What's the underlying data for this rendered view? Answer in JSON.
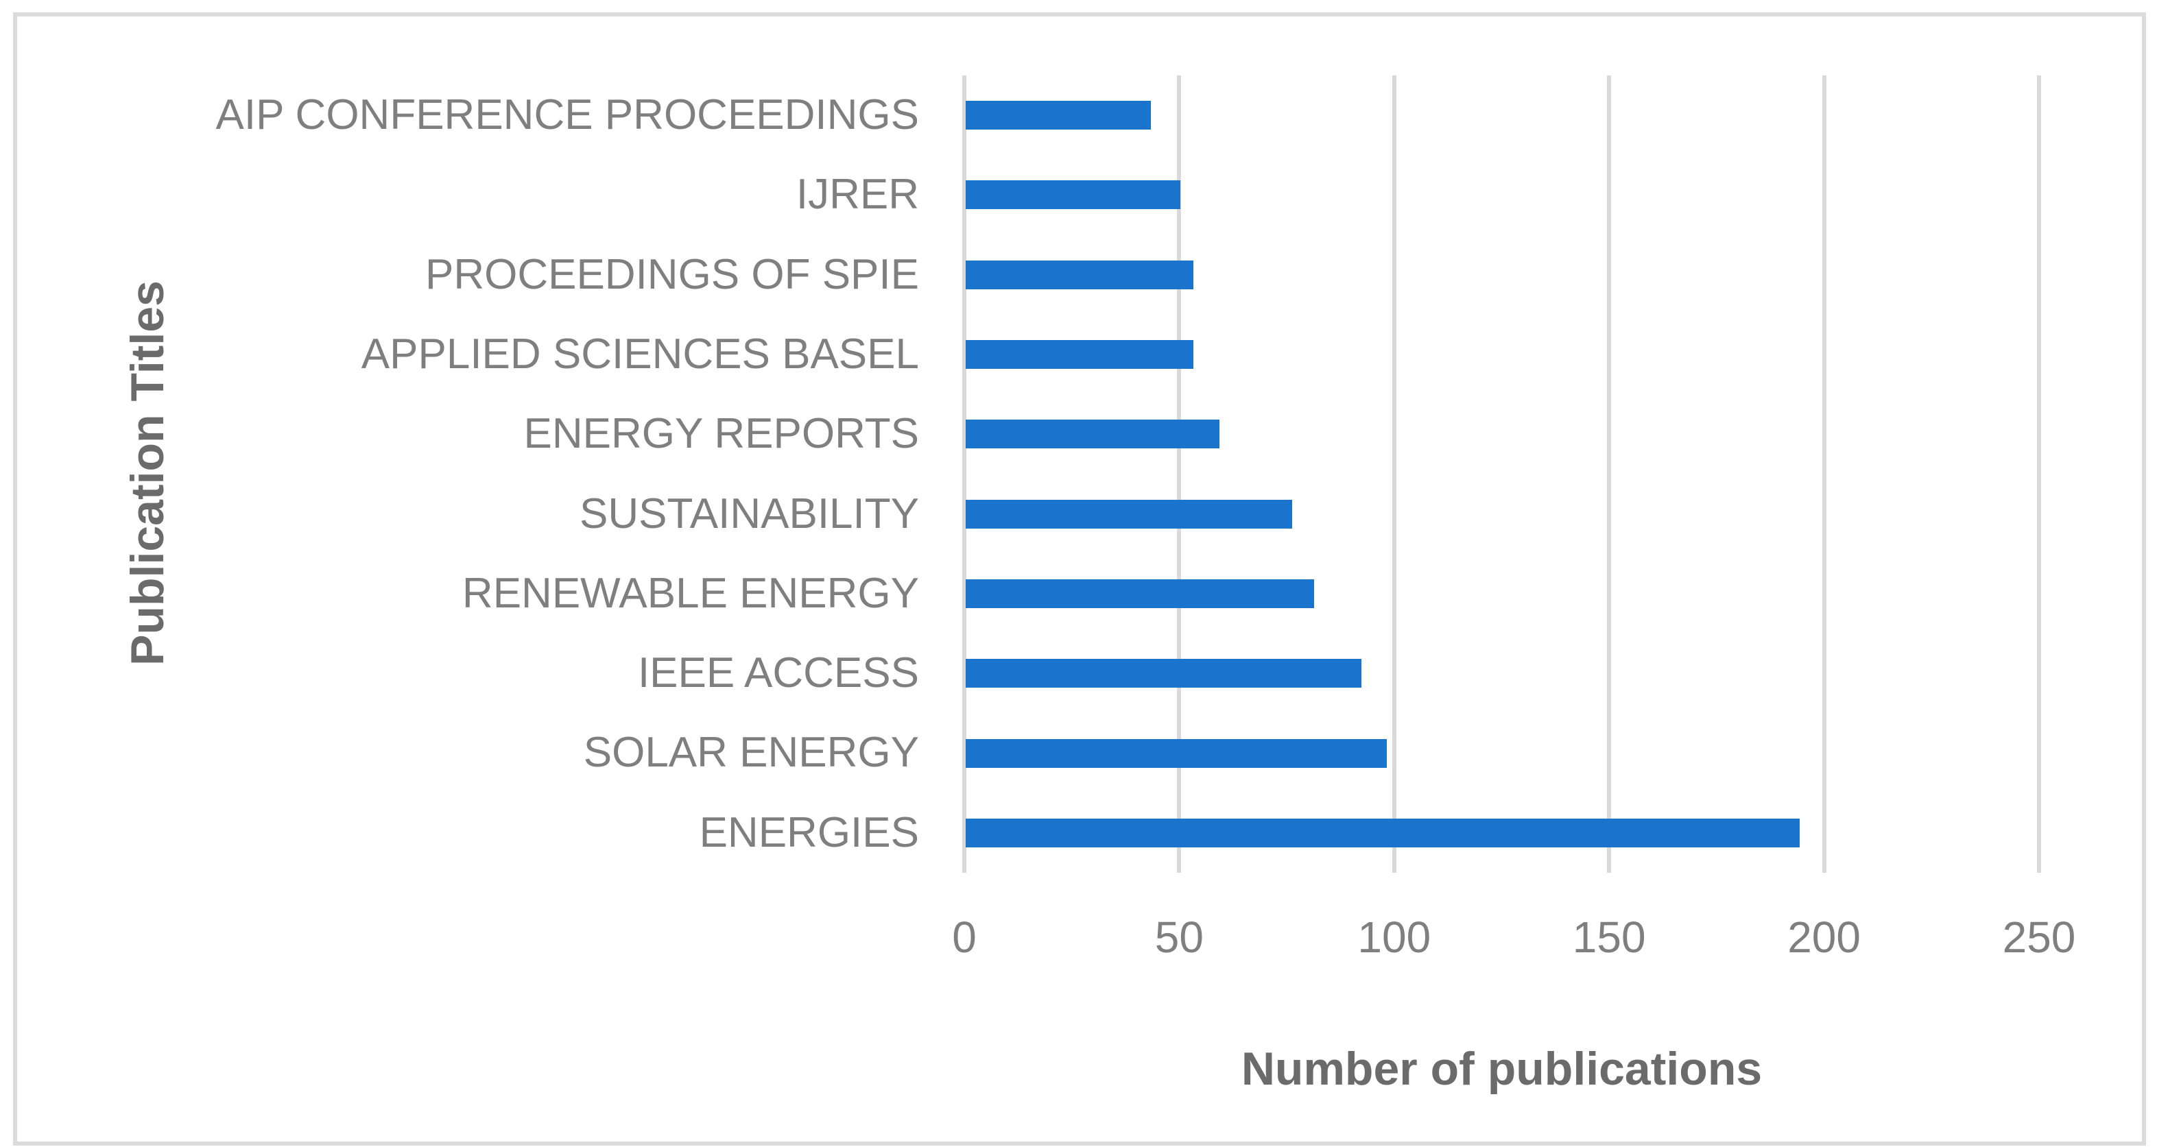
{
  "chart_data": {
    "type": "bar",
    "orientation": "horizontal",
    "categories": [
      "AIP CONFERENCE PROCEEDINGS",
      "IJRER",
      "PROCEEDINGS OF SPIE",
      "APPLIED SCIENCES BASEL",
      "ENERGY REPORTS",
      "SUSTAINABILITY",
      "RENEWABLE ENERGY",
      "IEEE ACCESS",
      "SOLAR ENERGY",
      "ENERGIES"
    ],
    "values": [
      43,
      50,
      53,
      53,
      59,
      76,
      81,
      92,
      98,
      194
    ],
    "xlabel": "Number of publications",
    "ylabel": "Publication Titles",
    "xlim": [
      0,
      250
    ],
    "xticks": [
      "0",
      "50",
      "100",
      "150",
      "200",
      "250"
    ],
    "grid": true,
    "legend": false,
    "colors": {
      "bar": "#1B74CC",
      "gridline": "#D9D9D9",
      "frame_border": "#DBDBDB",
      "tick_label": "#7F7F7F",
      "category_label": "#7F7F7F",
      "axis_title": "#6B6B6B",
      "background": "#FFFFFF"
    }
  }
}
